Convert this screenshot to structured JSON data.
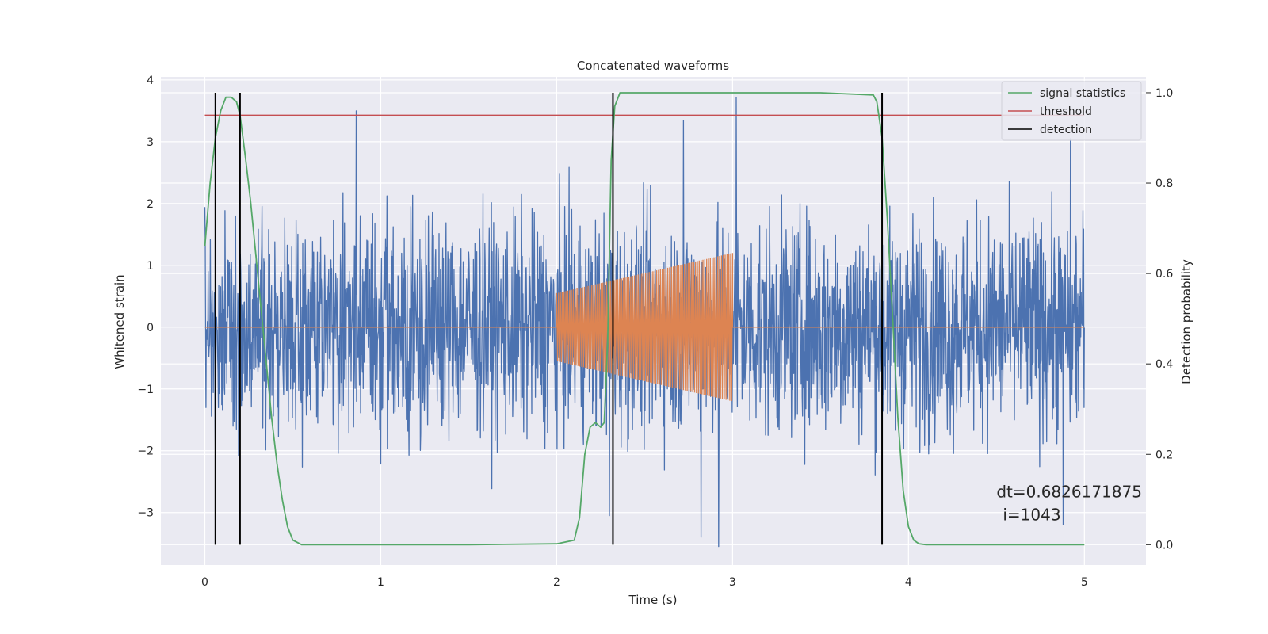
{
  "chart_data": {
    "type": "line",
    "title": "Concatenated waveforms",
    "xlabel": "Time (s)",
    "ylabel": "Whitened strain",
    "y2label": "Detection probability",
    "xlim": [
      -0.25,
      5.35
    ],
    "ylim": [
      -3.85,
      4.05
    ],
    "y2lim": [
      -0.045,
      1.035
    ],
    "xticks": [
      0,
      1,
      2,
      3,
      4,
      5
    ],
    "yticks": [
      -3,
      -2,
      -1,
      0,
      1,
      2,
      3,
      4
    ],
    "y2ticks": [
      0.0,
      0.2,
      0.4,
      0.6,
      0.8,
      1.0
    ],
    "xtick_labels": [
      "0",
      "1",
      "2",
      "3",
      "4",
      "5"
    ],
    "ytick_labels": [
      "−3",
      "−2",
      "−1",
      "0",
      "1",
      "2",
      "3",
      "4"
    ],
    "y2tick_labels": [
      "0.0",
      "0.2",
      "0.4",
      "0.6",
      "0.8",
      "1.0"
    ],
    "grid": true,
    "legend_position": "top-right",
    "colors": {
      "background": "#eaeaf2",
      "grid": "#ffffff",
      "strain": "#4c72b0",
      "injection": "#dd8452",
      "signal_statistics": "#55a868",
      "threshold": "#c44e52",
      "detection": "#000000"
    },
    "series": [
      {
        "name": "",
        "role": "whitened strain (noise)",
        "axis": "left",
        "x_range": [
          0,
          5
        ],
        "samples": 2400,
        "typical_amplitude": 1.6,
        "peak_values": [
          [
            0.86,
            3.5
          ],
          [
            2.72,
            3.35
          ],
          [
            3.02,
            3.72
          ],
          [
            4.92,
            3.05
          ],
          [
            2.92,
            -3.55
          ],
          [
            2.82,
            -3.4
          ],
          [
            4.88,
            -3.2
          ],
          [
            2.3,
            -3.05
          ]
        ]
      },
      {
        "name": "",
        "role": "injected chirp",
        "axis": "left",
        "x_range": [
          2.0,
          3.0
        ],
        "amplitude_start": 0.55,
        "amplitude_end": 1.2,
        "cycles": 95
      },
      {
        "name": "signal statistics",
        "axis": "right",
        "x": [
          0,
          0.03,
          0.06,
          0.09,
          0.12,
          0.15,
          0.18,
          0.2,
          0.23,
          0.26,
          0.29,
          0.32,
          0.35,
          0.38,
          0.41,
          0.44,
          0.47,
          0.5,
          0.55,
          1.0,
          1.5,
          2.0,
          2.1,
          2.13,
          2.16,
          2.19,
          2.22,
          2.25,
          2.27,
          2.29,
          2.31,
          2.33,
          2.36,
          2.5,
          3.0,
          3.5,
          3.8,
          3.82,
          3.85,
          3.88,
          3.91,
          3.94,
          3.97,
          4.0,
          4.03,
          4.06,
          4.1,
          4.5,
          5.0
        ],
        "y": [
          0.66,
          0.8,
          0.9,
          0.96,
          0.99,
          0.99,
          0.98,
          0.95,
          0.86,
          0.76,
          0.64,
          0.52,
          0.4,
          0.28,
          0.18,
          0.1,
          0.04,
          0.01,
          0.0,
          0.0,
          0.0,
          0.002,
          0.01,
          0.06,
          0.2,
          0.26,
          0.27,
          0.26,
          0.27,
          0.45,
          0.85,
          0.97,
          1.0,
          1.0,
          1.0,
          1.0,
          0.995,
          0.98,
          0.9,
          0.72,
          0.5,
          0.28,
          0.12,
          0.04,
          0.01,
          0.002,
          0.0,
          0.0,
          0.0
        ]
      },
      {
        "name": "threshold",
        "axis": "right",
        "x": [
          0,
          5
        ],
        "y": [
          0.95,
          0.95
        ]
      }
    ],
    "detections": {
      "name": "detection",
      "x": [
        0.06,
        0.2,
        2.32,
        3.85
      ],
      "y_range": [
        0.0,
        1.0
      ]
    },
    "annotation": {
      "line1": "dt=0.6826171875",
      "line2": "i=1043",
      "x": 4.5,
      "y": 0.105
    }
  }
}
